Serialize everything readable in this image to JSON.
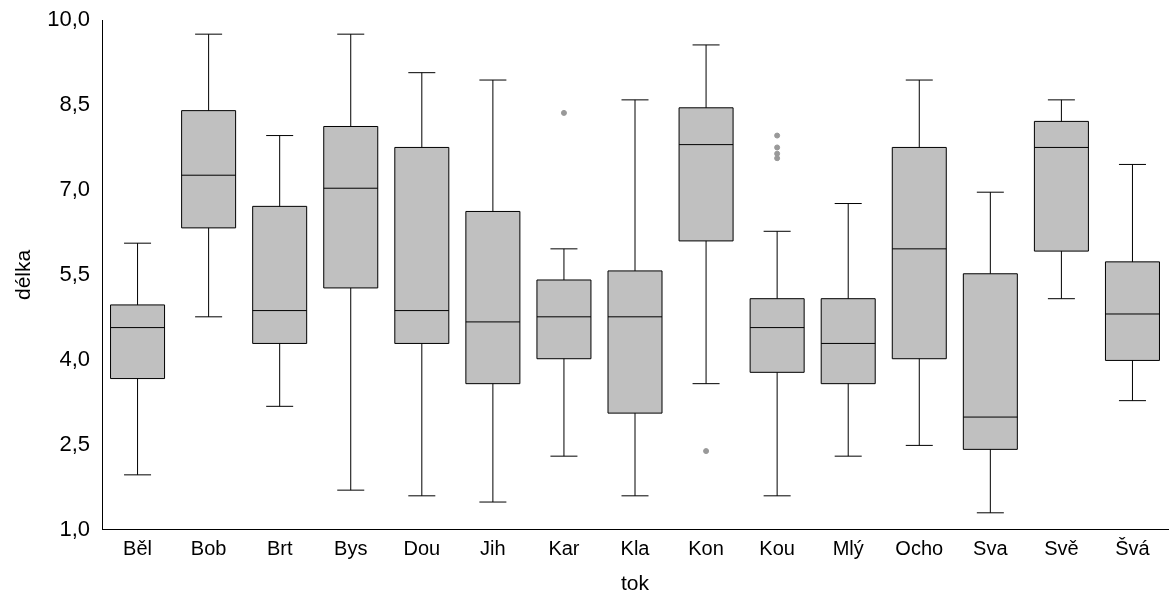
{
  "chart_data": {
    "type": "box",
    "xlabel": "tok",
    "ylabel": "délka",
    "color": "#c0c0c0",
    "grid": false,
    "legend": false,
    "categories": [
      "Běl",
      "Bob",
      "Brt",
      "Bys",
      "Dou",
      "Jih",
      "Kar",
      "Kla",
      "Kon",
      "Kou",
      "Mlý",
      "Ocho",
      "Sva",
      "Svě",
      "Švá"
    ],
    "ylim": [
      1,
      10
    ],
    "yticks": [
      {
        "value": 1,
        "label": "1,0"
      },
      {
        "value": 2.5,
        "label": "2,5"
      },
      {
        "value": 4,
        "label": "4,0"
      },
      {
        "value": 5.5,
        "label": "5,5"
      },
      {
        "value": 7,
        "label": "7,0"
      },
      {
        "value": 8.5,
        "label": "8,5"
      },
      {
        "value": 10,
        "label": "10,0"
      }
    ],
    "boxes": [
      {
        "low": 1.97,
        "q1": 3.67,
        "median": 4.57,
        "q3": 4.97,
        "high": 6.06
      },
      {
        "low": 4.76,
        "q1": 6.33,
        "median": 7.26,
        "q3": 8.4,
        "high": 9.75
      },
      {
        "low": 3.18,
        "q1": 4.29,
        "median": 4.87,
        "q3": 6.71,
        "high": 7.96
      },
      {
        "low": 1.7,
        "q1": 5.27,
        "median": 7.03,
        "q3": 8.12,
        "high": 9.75
      },
      {
        "low": 1.6,
        "q1": 4.29,
        "median": 4.87,
        "q3": 7.75,
        "high": 9.07
      },
      {
        "low": 1.49,
        "q1": 3.58,
        "median": 4.67,
        "q3": 6.62,
        "high": 8.94
      },
      {
        "low": 2.3,
        "q1": 4.02,
        "median": 4.76,
        "q3": 5.41,
        "high": 5.96,
        "outliers": [
          8.36
        ]
      },
      {
        "low": 1.6,
        "q1": 3.06,
        "median": 4.76,
        "q3": 5.57,
        "high": 8.59
      },
      {
        "low": 3.58,
        "q1": 6.1,
        "median": 7.8,
        "q3": 8.45,
        "high": 9.56,
        "outliers": [
          2.39
        ]
      },
      {
        "low": 1.6,
        "q1": 3.78,
        "median": 4.57,
        "q3": 5.08,
        "high": 6.27,
        "outliers": [
          7.96,
          7.75,
          7.64,
          7.56
        ]
      },
      {
        "low": 2.3,
        "q1": 3.58,
        "median": 4.29,
        "q3": 5.08,
        "high": 6.76
      },
      {
        "low": 2.49,
        "q1": 4.02,
        "median": 5.96,
        "q3": 7.75,
        "high": 8.94
      },
      {
        "low": 1.3,
        "q1": 2.42,
        "median": 2.99,
        "q3": 5.52,
        "high": 6.96
      },
      {
        "low": 5.08,
        "q1": 5.92,
        "median": 7.75,
        "q3": 8.21,
        "high": 8.59
      },
      {
        "low": 3.28,
        "q1": 3.99,
        "median": 4.81,
        "q3": 5.73,
        "high": 7.45
      }
    ]
  }
}
